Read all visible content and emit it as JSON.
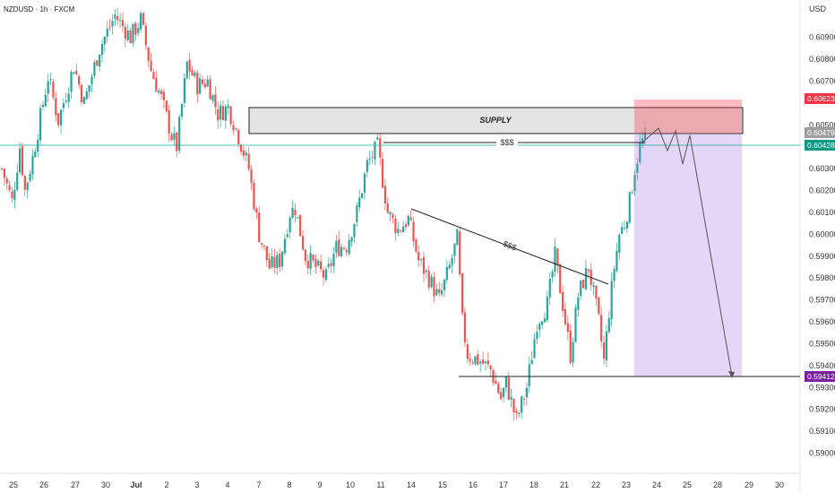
{
  "header": {
    "symbol_line": "NZDUSD · 1h · FXCM",
    "currency": "USD"
  },
  "colors": {
    "up": "#26a69a",
    "down": "#ef5350",
    "stop_tag": "#f23645",
    "entry_tag": "#089981",
    "target_tag": "#7b1fa2",
    "current_tag": "#26a69a"
  },
  "chart_data": {
    "type": "candlestick",
    "symbol": "NZDUSD",
    "timeframe": "1h",
    "source": "FXCM",
    "ylim": [
      0.589,
      0.6105
    ],
    "y_ticks": [
      0.59,
      0.591,
      0.592,
      0.593,
      0.594,
      0.595,
      0.596,
      0.597,
      0.598,
      0.599,
      0.6,
      0.601,
      0.602,
      0.603,
      0.604,
      0.605,
      0.607,
      0.608,
      0.609
    ],
    "y_tick_labels": [
      "0.59000",
      "0.59100",
      "0.59200",
      "0.59300",
      "0.59400",
      "0.59500",
      "0.59600",
      "0.59700",
      "0.59800",
      "0.59900",
      "0.60000",
      "0.60100",
      "0.60200",
      "0.60300",
      "0.60400",
      "0.60500",
      "0.60700",
      "0.60800",
      "0.60900"
    ],
    "x_labels": [
      "25",
      "26",
      "27",
      "30",
      "Jul",
      "2",
      "3",
      "4",
      "7",
      "8",
      "9",
      "10",
      "11",
      "14",
      "15",
      "16",
      "17",
      "18",
      "21",
      "22",
      "23",
      "24",
      "25",
      "28",
      "29",
      "30"
    ],
    "price_path": [
      [
        0,
        0.603
      ],
      [
        4,
        0.6015
      ],
      [
        7,
        0.604
      ],
      [
        9,
        0.602
      ],
      [
        12,
        0.6035
      ],
      [
        18,
        0.6072
      ],
      [
        22,
        0.6052
      ],
      [
        28,
        0.6077
      ],
      [
        32,
        0.606
      ],
      [
        38,
        0.6085
      ],
      [
        44,
        0.61
      ],
      [
        50,
        0.609
      ],
      [
        54,
        0.6098
      ],
      [
        58,
        0.6075
      ],
      [
        62,
        0.6062
      ],
      [
        66,
        0.6045
      ],
      [
        68,
        0.604
      ],
      [
        72,
        0.6078
      ],
      [
        76,
        0.6068
      ],
      [
        80,
        0.607
      ],
      [
        84,
        0.6055
      ],
      [
        88,
        0.6058
      ],
      [
        92,
        0.6045
      ],
      [
        96,
        0.603
      ],
      [
        100,
        0.6
      ],
      [
        104,
        0.5985
      ],
      [
        108,
        0.5988
      ],
      [
        112,
        0.601
      ],
      [
        114,
        0.6012
      ],
      [
        118,
        0.599
      ],
      [
        122,
        0.5985
      ],
      [
        126,
        0.598
      ],
      [
        130,
        0.5994
      ],
      [
        134,
        0.5995
      ],
      [
        138,
        0.601
      ],
      [
        142,
        0.6032
      ],
      [
        146,
        0.604
      ],
      [
        150,
        0.601
      ],
      [
        154,
        0.6002
      ],
      [
        158,
        0.6007
      ],
      [
        162,
        0.5988
      ],
      [
        166,
        0.598
      ],
      [
        170,
        0.597
      ],
      [
        174,
        0.5985
      ],
      [
        177,
        0.5998
      ],
      [
        179,
        0.596
      ],
      [
        181,
        0.5945
      ],
      [
        186,
        0.5942
      ],
      [
        190,
        0.5938
      ],
      [
        194,
        0.5925
      ],
      [
        196,
        0.5932
      ],
      [
        200,
        0.5915
      ],
      [
        204,
        0.593
      ],
      [
        208,
        0.596
      ],
      [
        212,
        0.5968
      ],
      [
        215,
        0.599
      ],
      [
        218,
        0.5968
      ],
      [
        221,
        0.5945
      ],
      [
        224,
        0.5972
      ],
      [
        228,
        0.5985
      ],
      [
        232,
        0.596
      ],
      [
        234,
        0.5942
      ],
      [
        236,
        0.5965
      ],
      [
        238,
        0.5985
      ],
      [
        240,
        0.6
      ],
      [
        242,
        0.6005
      ],
      [
        244,
        0.6015
      ],
      [
        246,
        0.603
      ],
      [
        248,
        0.604
      ],
      [
        250,
        0.6045
      ]
    ],
    "bars_count": 251,
    "levels": {
      "stop": {
        "value": 0.60623,
        "label": "0.60623"
      },
      "entry": {
        "value": 0.60479,
        "label": "0.60479"
      },
      "current": {
        "value": 0.60428,
        "label": "0.60428"
      },
      "target": {
        "value": 0.59412,
        "label": "0.59412"
      }
    },
    "supply_zone": {
      "top": 0.60605,
      "bottom": 0.6049,
      "label": "SUPPLY"
    },
    "liquidity_labels": [
      "$$$",
      "$$$"
    ]
  }
}
